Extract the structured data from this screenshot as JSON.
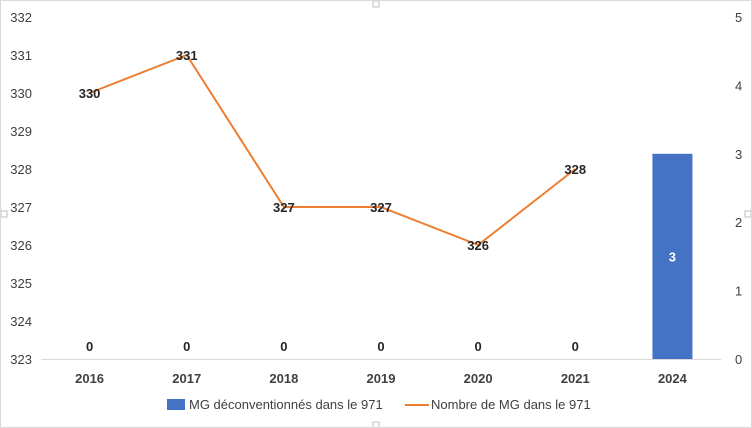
{
  "chart_data": {
    "type": "bar+line",
    "title": "",
    "xlabel": "",
    "ylabel": "",
    "y2label": "",
    "categories": [
      "2016",
      "2017",
      "2018",
      "2019",
      "2020",
      "2021",
      "2024"
    ],
    "series": [
      {
        "name": "MG déconventionnés dans le 971",
        "type": "bar",
        "axis": "secondary",
        "color": "#4472C4",
        "values": [
          0,
          0,
          0,
          0,
          0,
          0,
          3
        ],
        "labels": [
          "0",
          "0",
          "0",
          "0",
          "0",
          "0",
          "3"
        ]
      },
      {
        "name": "Nombre de MG dans le 971",
        "type": "line",
        "axis": "primary",
        "color": "#ED7D31",
        "values": [
          330,
          331,
          327,
          327,
          326,
          328,
          null
        ],
        "labels": [
          "330",
          "331",
          "327",
          "327",
          "326",
          "328",
          ""
        ]
      }
    ],
    "y_primary": {
      "min": 323,
      "max": 332,
      "ticks": [
        "323",
        "324",
        "325",
        "326",
        "327",
        "328",
        "329",
        "330",
        "331",
        "332"
      ]
    },
    "y_secondary": {
      "min": 0,
      "max": 5,
      "ticks": [
        "0",
        "1",
        "2",
        "3",
        "4",
        "5"
      ]
    },
    "grid": false,
    "legend": "bottom"
  }
}
